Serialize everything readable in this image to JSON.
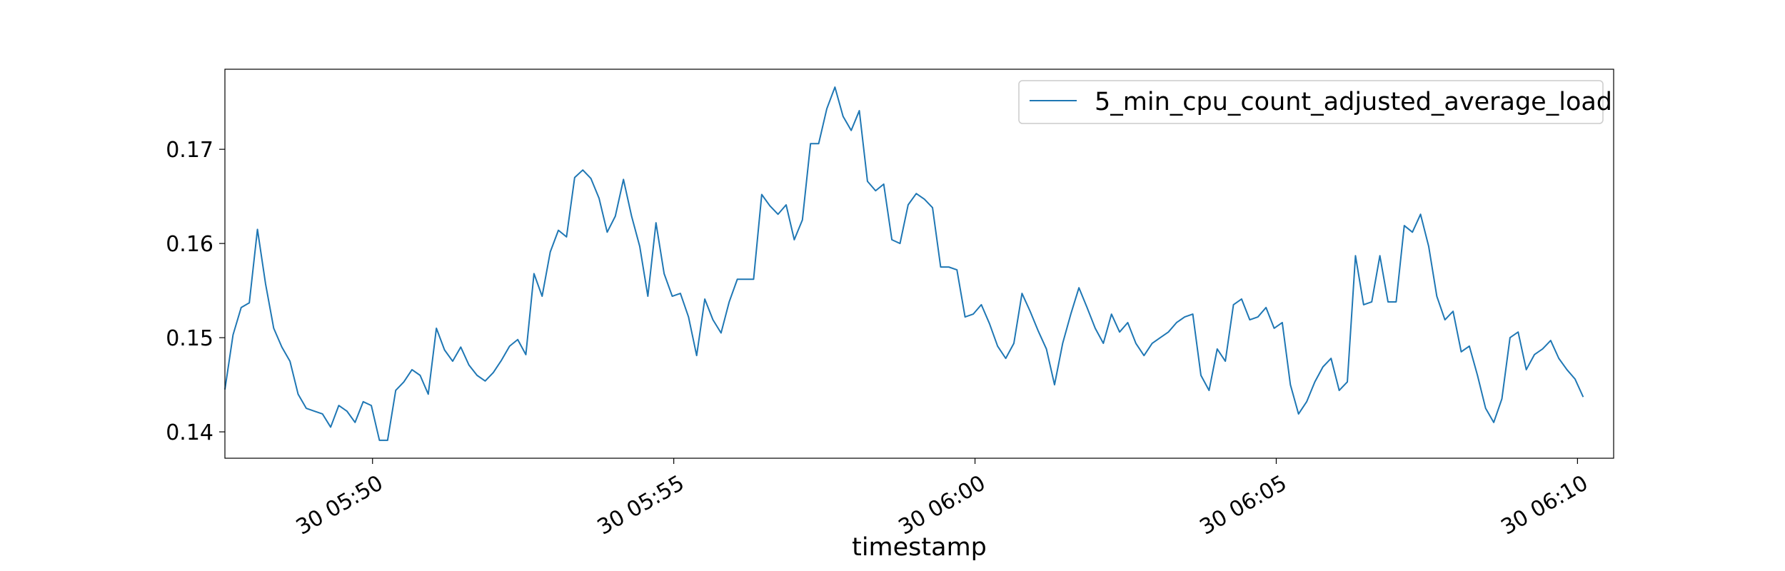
{
  "chart_data": {
    "type": "line",
    "title": "",
    "xlabel": "timestamp",
    "ylabel": "",
    "x_tick_labels": [
      "30 05:50",
      "30 05:55",
      "30 06:00",
      "30 06:05",
      "30 06:10"
    ],
    "x_tick_minutes": [
      -10,
      -5,
      0,
      5,
      10
    ],
    "xlim_minutes": [
      -12.45,
      10.6
    ],
    "x_start_minute": -12.45,
    "x_step_minutes": 0.135,
    "y_ticks": [
      0.14,
      0.15,
      0.16,
      0.17
    ],
    "y_tick_labels": [
      "0.14",
      "0.15",
      "0.16",
      "0.17"
    ],
    "ylim": [
      0.1372,
      0.1785
    ],
    "grid": false,
    "legend_position": "top-right",
    "series": [
      {
        "name": "5_min_cpu_count_adjusted_average_load",
        "color": "#1f77b4",
        "values": [
          0.1445,
          0.1503,
          0.1532,
          0.1537,
          0.1615,
          0.1557,
          0.151,
          0.149,
          0.1475,
          0.144,
          0.1425,
          0.1422,
          0.1419,
          0.1405,
          0.1428,
          0.1422,
          0.141,
          0.1432,
          0.1428,
          0.1391,
          0.1391,
          0.1444,
          0.1453,
          0.1466,
          0.146,
          0.144,
          0.151,
          0.1487,
          0.1475,
          0.149,
          0.1471,
          0.146,
          0.1454,
          0.1463,
          0.1476,
          0.1491,
          0.1498,
          0.1482,
          0.1568,
          0.1544,
          0.1591,
          0.1614,
          0.1607,
          0.167,
          0.1678,
          0.1669,
          0.1648,
          0.1612,
          0.1629,
          0.1668,
          0.1629,
          0.1597,
          0.1544,
          0.1622,
          0.1568,
          0.1544,
          0.1547,
          0.1522,
          0.1481,
          0.1541,
          0.1519,
          0.1505,
          0.1538,
          0.1562,
          0.1562,
          0.1562,
          0.1652,
          0.164,
          0.1631,
          0.1641,
          0.1604,
          0.1625,
          0.1706,
          0.1706,
          0.1743,
          0.1766,
          0.1735,
          0.172,
          0.1741,
          0.1666,
          0.1656,
          0.1663,
          0.1604,
          0.16,
          0.1641,
          0.1653,
          0.1647,
          0.1638,
          0.1575,
          0.1575,
          0.1572,
          0.1522,
          0.1525,
          0.1535,
          0.1515,
          0.1491,
          0.1478,
          0.1494,
          0.1547,
          0.1528,
          0.1507,
          0.1488,
          0.145,
          0.1494,
          0.1525,
          0.1553,
          0.1532,
          0.151,
          0.1494,
          0.1525,
          0.1506,
          0.1516,
          0.1494,
          0.1481,
          0.1494,
          0.15,
          0.1506,
          0.1516,
          0.1522,
          0.1525,
          0.146,
          0.1444,
          0.1488,
          0.1475,
          0.1535,
          0.1541,
          0.1519,
          0.1522,
          0.1532,
          0.151,
          0.1516,
          0.145,
          0.1419,
          0.1432,
          0.1453,
          0.1469,
          0.1478,
          0.1444,
          0.1453,
          0.1587,
          0.1535,
          0.1538,
          0.1587,
          0.1538,
          0.1538,
          0.1619,
          0.1612,
          0.1631,
          0.1597,
          0.1544,
          0.1519,
          0.1528,
          0.1485,
          0.1491,
          0.146,
          0.1425,
          0.141,
          0.1435,
          0.15,
          0.1506,
          0.1466,
          0.1482,
          0.1488,
          0.1497,
          0.1478,
          0.1466,
          0.1456,
          0.1437
        ]
      }
    ]
  }
}
